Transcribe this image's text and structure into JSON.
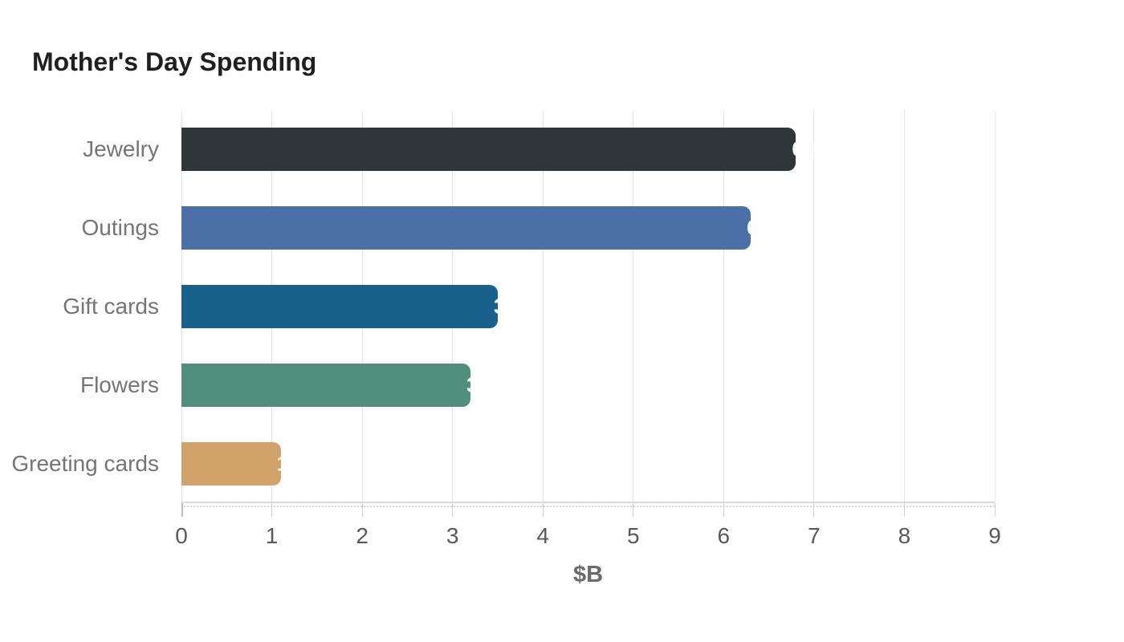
{
  "page": {
    "background": "#ffffff"
  },
  "chart_data": {
    "type": "bar",
    "orientation": "horizontal",
    "title": "Mother's Day Spending",
    "xlabel": "$B",
    "ylabel": "",
    "categories": [
      "Jewelry",
      "Outings",
      "Gift cards",
      "Flowers",
      "Greeting cards"
    ],
    "values": [
      6.8,
      6.3,
      3.5,
      3.2,
      1.1
    ],
    "bar_value_labels": [
      "6.8",
      "6.3",
      "3.5",
      "3.2",
      "1.1"
    ],
    "bar_colors": [
      "#2d3638",
      "#4b70a8",
      "#17618c",
      "#4f8f7b",
      "#d2a26b"
    ],
    "xlim": [
      0,
      9
    ],
    "xticks": [
      0,
      1,
      2,
      3,
      4,
      5,
      6,
      7,
      8,
      9
    ],
    "grid": "vertical gridlines at integer ticks",
    "legend": "none",
    "styles": {
      "title_color": "#1f1f1f",
      "category_label_color": "#757575",
      "tick_label_color": "#595959",
      "xlabel_color": "#6b6b6b",
      "gridline_color": "#e3e3e3",
      "axis_line_color": "#dadada",
      "bar_value_label_color": "#ffffff"
    }
  }
}
